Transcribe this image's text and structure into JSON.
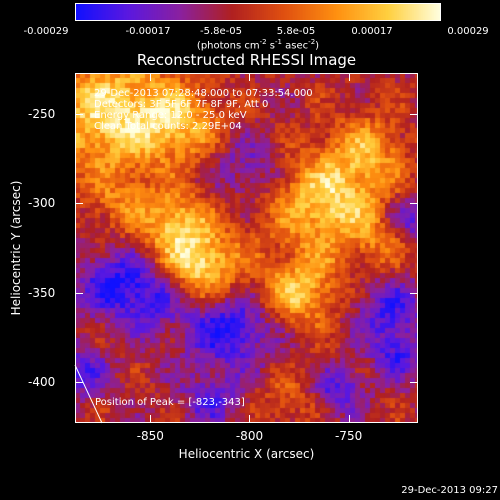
{
  "colorbar": {
    "tick_labels": [
      "-0.00029",
      "-0.00017",
      "-5.8e-05",
      "5.8e-05",
      "0.00017",
      "0.00029"
    ],
    "range": [
      -0.00029,
      0.00029
    ],
    "units": {
      "base": "(photons cm",
      "exp1": "-2",
      "mid1": " s",
      "exp2": "-1",
      "mid2": " asec",
      "exp3": "-2",
      "end": ")"
    },
    "colormap": [
      "#1010ff",
      "#5a18e0",
      "#8a20a0",
      "#b02020",
      "#e05010",
      "#ff9010",
      "#ffd040",
      "#ffffe0"
    ]
  },
  "info_lines": [
    "29-Dec-2013 07:28:48.000 to 07:33:54.000",
    "Detectors: 3F 5F 6F 7F 8F 9F, Att 0",
    "Energy Range: 12.0 - 25.0 keV",
    "Clean     Total counts: 2.29E+04"
  ],
  "peak_label": "Position of Peak = [-823,-343]",
  "timestamp": "29-Dec-2013 09:27",
  "chart_data": {
    "type": "heatmap",
    "title": "Reconstructed RHESSI Image",
    "xlabel": "Heliocentric X (arcsec)",
    "ylabel": "Heliocentric Y (arcsec)",
    "xlim": [
      -888,
      -715
    ],
    "ylim": [
      -423,
      -227
    ],
    "x_ticks": [
      -850,
      -800,
      -750
    ],
    "x_tick_labels": [
      "-850",
      "-800",
      "-750"
    ],
    "y_ticks": [
      -250,
      -300,
      -350,
      -400
    ],
    "y_tick_labels": [
      "-250",
      "-300",
      "-350",
      "-400"
    ],
    "peak": [
      -823,
      -343
    ],
    "features": [
      {
        "x": -870,
        "y": -250,
        "sigma": 24,
        "amp": 0.9
      },
      {
        "x": -835,
        "y": -255,
        "sigma": 14,
        "amp": 0.55
      },
      {
        "x": -826,
        "y": -335,
        "sigma": 15,
        "amp": 1.0
      },
      {
        "x": -838,
        "y": -310,
        "sigma": 12,
        "amp": 0.65
      },
      {
        "x": -760,
        "y": -300,
        "sigma": 20,
        "amp": 0.85
      },
      {
        "x": -740,
        "y": -270,
        "sigma": 14,
        "amp": 0.5
      },
      {
        "x": -775,
        "y": -350,
        "sigma": 14,
        "amp": 0.75
      },
      {
        "x": -730,
        "y": -320,
        "sigma": 11,
        "amp": 0.4
      },
      {
        "x": -780,
        "y": -410,
        "sigma": 11,
        "amp": 0.3
      },
      {
        "x": -865,
        "y": -300,
        "sigma": 11,
        "amp": 0.35
      },
      {
        "x": -848,
        "y": -350,
        "sigma": 14,
        "amp": -0.6
      },
      {
        "x": -810,
        "y": -370,
        "sigma": 16,
        "amp": -0.7
      },
      {
        "x": -730,
        "y": -360,
        "sigma": 13,
        "amp": -0.55
      },
      {
        "x": -870,
        "y": -345,
        "sigma": 13,
        "amp": -0.55
      },
      {
        "x": -725,
        "y": -385,
        "sigma": 9,
        "amp": -0.5
      },
      {
        "x": -800,
        "y": -280,
        "sigma": 12,
        "amp": -0.4
      },
      {
        "x": -720,
        "y": -310,
        "sigma": 10,
        "amp": -0.6
      },
      {
        "x": -755,
        "y": -405,
        "sigma": 9,
        "amp": -0.55
      },
      {
        "x": -820,
        "y": -410,
        "sigma": 10,
        "amp": -0.45
      },
      {
        "x": -885,
        "y": -395,
        "sigma": 10,
        "amp": -0.5
      }
    ]
  }
}
